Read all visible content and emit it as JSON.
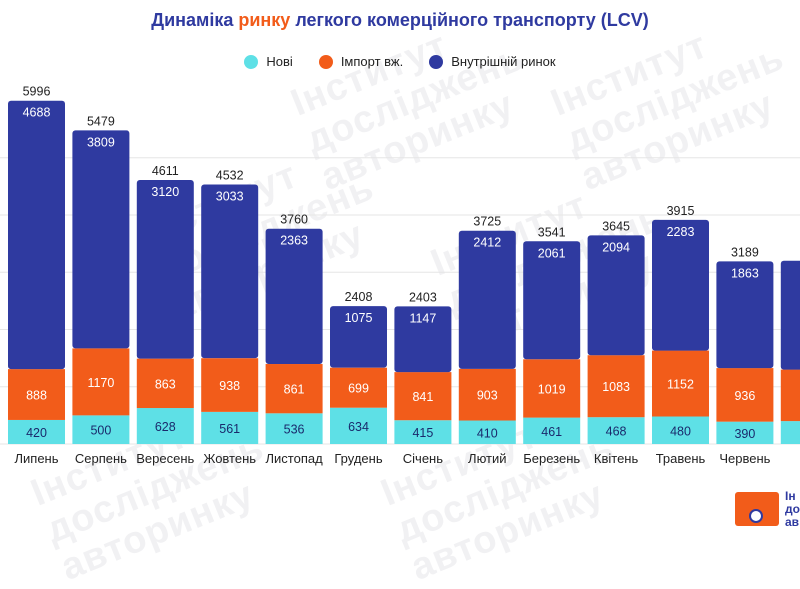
{
  "title": {
    "prefix": "Динаміка ",
    "highlight": "ринку",
    "suffix": " легкого комерційного транспорту (LCV)"
  },
  "colors": {
    "new": "#5ee0e6",
    "import": "#f25c1a",
    "domestic": "#2f3aa0",
    "title": "#2f3aa0",
    "grid": "#e6e6e6"
  },
  "watermark": {
    "line1": "Інститут",
    "line2": "досліджень",
    "line3": "авторинку"
  },
  "logo": {
    "line1": "Ін",
    "line2": "до",
    "line3": "ав"
  },
  "chart_data": {
    "type": "bar",
    "stacked": true,
    "categories": [
      "Липень",
      "Серпень",
      "Вересень",
      "Жовтень",
      "Листопад",
      "Грудень",
      "Січень",
      "Лютий",
      "Березень",
      "Квітень",
      "Травень",
      "Червень",
      "Липень"
    ],
    "series": [
      {
        "name": "Нові",
        "values": [
          420,
          500,
          628,
          561,
          536,
          634,
          415,
          410,
          461,
          468,
          480,
          390,
          400
        ]
      },
      {
        "name": "Імпорт вж.",
        "values": [
          888,
          1170,
          863,
          938,
          861,
          699,
          841,
          903,
          1019,
          1083,
          1152,
          936,
          900
        ]
      },
      {
        "name": "Внутрішній ринок",
        "values": [
          4688,
          3809,
          3120,
          3033,
          2363,
          1075,
          1147,
          2412,
          2061,
          2094,
          2283,
          1863,
          1900
        ]
      }
    ],
    "totals": [
      5996,
      5479,
      4611,
      4532,
      3760,
      2408,
      2403,
      3725,
      3541,
      3645,
      3915,
      3189,
      3200
    ],
    "visible_labels": {
      "domestic_last": "1",
      "import_last": "9",
      "new_last": "4",
      "total_last": "3",
      "category_last": "Ли"
    },
    "legend_position": "top-center",
    "grid": true,
    "ylim": [
      0,
      6000
    ]
  }
}
